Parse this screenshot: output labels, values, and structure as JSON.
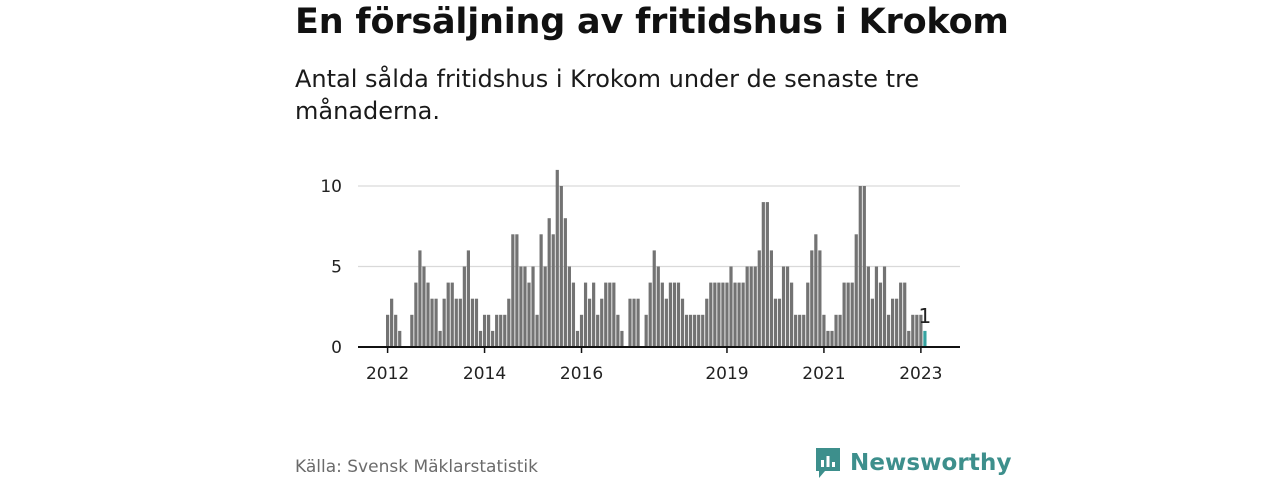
{
  "title": "En försäljning av fritidshus i Krokom",
  "subtitle": "Antal sålda fritidshus i Krokom under de senaste tre månaderna.",
  "source": "Källa: Svensk Mäklarstatistik",
  "brand": {
    "name": "Newsworthy",
    "icon": "newsworthy-logo-icon",
    "color": "#3d8f8c"
  },
  "colors": {
    "bar": "#737373",
    "highlight": "#36a3a0",
    "grid": "#d9d9d9",
    "axis": "#111111"
  },
  "chart_data": {
    "type": "bar",
    "x_start": "2012-01",
    "x_end": "2023-02",
    "values": [
      2,
      3,
      2,
      1,
      0,
      0,
      2,
      4,
      6,
      5,
      4,
      3,
      3,
      1,
      3,
      4,
      4,
      3,
      3,
      5,
      6,
      3,
      3,
      1,
      2,
      2,
      1,
      2,
      2,
      2,
      3,
      7,
      7,
      5,
      5,
      4,
      5,
      2,
      7,
      5,
      8,
      7,
      11,
      10,
      8,
      5,
      4,
      1,
      2,
      4,
      3,
      4,
      2,
      3,
      4,
      4,
      4,
      2,
      1,
      0,
      3,
      3,
      3,
      0,
      2,
      4,
      6,
      5,
      4,
      3,
      4,
      4,
      4,
      3,
      2,
      2,
      2,
      2,
      2,
      3,
      4,
      4,
      4,
      4,
      4,
      5,
      4,
      4,
      4,
      5,
      5,
      5,
      6,
      9,
      9,
      6,
      3,
      3,
      5,
      5,
      4,
      2,
      2,
      2,
      4,
      6,
      7,
      6,
      2,
      1,
      1,
      2,
      2,
      4,
      4,
      4,
      7,
      10,
      10,
      5,
      3,
      5,
      4,
      5,
      2,
      3,
      3,
      4,
      4,
      1,
      2,
      2,
      2,
      1
    ],
    "highlight_last": true,
    "annotation": "1",
    "yticks": [
      0,
      5,
      10
    ],
    "ylim": [
      0,
      11
    ],
    "xticks": [
      "2012",
      "2014",
      "2016",
      "2019",
      "2021",
      "2023"
    ],
    "xlabel": "",
    "ylabel": "",
    "grid": true
  }
}
